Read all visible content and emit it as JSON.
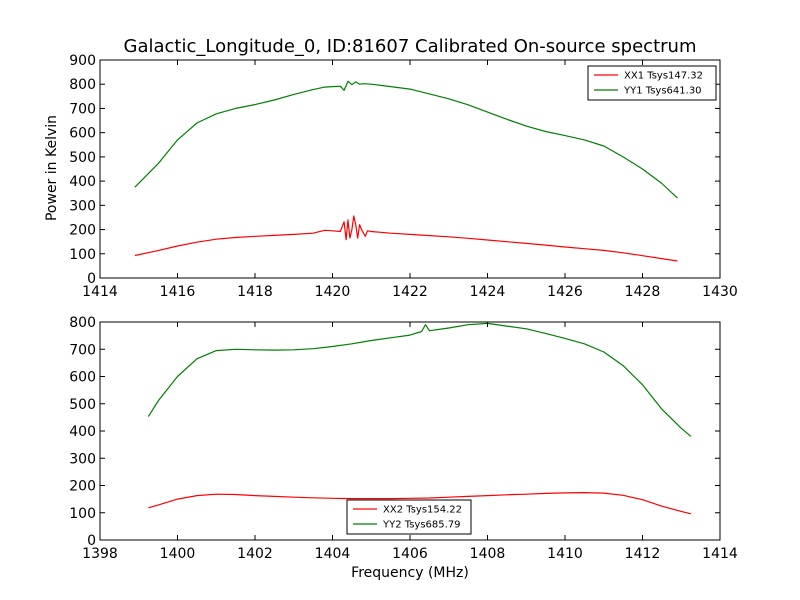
{
  "figure": {
    "title": "Galactic_Longitude_0, ID:81607 Calibrated On-source spectrum",
    "ylabel": "Power in Kelvin",
    "xlabel": "Frequency (MHz)"
  },
  "chart_data": [
    {
      "type": "line",
      "title": "Galactic_Longitude_0, ID:81607 Calibrated On-source spectrum",
      "xlabel": "",
      "ylabel": "Power in Kelvin",
      "xlim": [
        1414,
        1430
      ],
      "ylim": [
        0,
        900
      ],
      "xticks": [
        1414,
        1416,
        1418,
        1420,
        1422,
        1424,
        1426,
        1428,
        1430
      ],
      "yticks": [
        0,
        100,
        200,
        300,
        400,
        500,
        600,
        700,
        800,
        900
      ],
      "grid": false,
      "legend_position": "top-right",
      "series": [
        {
          "name": "XX1 Tsys147.32",
          "color": "#ff0000",
          "x": [
            1414.9,
            1415.5,
            1416,
            1416.5,
            1417,
            1417.5,
            1418,
            1418.5,
            1419,
            1419.5,
            1419.8,
            1420.0,
            1420.2,
            1420.3,
            1420.35,
            1420.4,
            1420.45,
            1420.5,
            1420.55,
            1420.6,
            1420.65,
            1420.7,
            1420.75,
            1420.8,
            1420.85,
            1420.9,
            1421,
            1421.5,
            1422,
            1422.5,
            1423,
            1423.5,
            1424,
            1424.5,
            1425,
            1425.5,
            1426,
            1426.5,
            1427,
            1427.5,
            1428,
            1428.5,
            1428.9
          ],
          "values": [
            93,
            113,
            132,
            148,
            160,
            167,
            172,
            176,
            180,
            185,
            197,
            195,
            192,
            232,
            158,
            240,
            165,
            200,
            256,
            220,
            165,
            220,
            200,
            185,
            172,
            195,
            192,
            185,
            180,
            175,
            170,
            164,
            157,
            150,
            143,
            136,
            128,
            121,
            114,
            104,
            92,
            80,
            70
          ]
        },
        {
          "name": "YY1 Tsys641.30",
          "color": "#008000",
          "x": [
            1414.9,
            1415.5,
            1416,
            1416.5,
            1417,
            1417.5,
            1418,
            1418.5,
            1419,
            1419.5,
            1419.8,
            1420.0,
            1420.2,
            1420.3,
            1420.4,
            1420.5,
            1420.6,
            1420.7,
            1420.8,
            1421,
            1421.5,
            1422,
            1422.5,
            1423,
            1423.5,
            1424,
            1424.5,
            1425,
            1425.5,
            1426,
            1426.5,
            1427,
            1427.5,
            1428,
            1428.5,
            1428.9
          ],
          "values": [
            375,
            472,
            570,
            640,
            678,
            700,
            716,
            735,
            758,
            778,
            788,
            790,
            792,
            775,
            812,
            798,
            810,
            800,
            802,
            800,
            790,
            780,
            760,
            740,
            715,
            685,
            655,
            627,
            605,
            588,
            570,
            545,
            500,
            450,
            390,
            330
          ]
        }
      ]
    },
    {
      "type": "line",
      "title": "",
      "xlabel": "Frequency (MHz)",
      "ylabel": "",
      "xlim": [
        1398,
        1414
      ],
      "ylim": [
        0,
        800
      ],
      "xticks": [
        1398,
        1400,
        1402,
        1404,
        1406,
        1408,
        1410,
        1412,
        1414
      ],
      "yticks": [
        0,
        100,
        200,
        300,
        400,
        500,
        600,
        700,
        800
      ],
      "grid": false,
      "legend_position": "bottom-center",
      "series": [
        {
          "name": "XX2 Tsys154.22",
          "color": "#ff0000",
          "x": [
            1399.25,
            1399.5,
            1400,
            1400.5,
            1401,
            1401.5,
            1402,
            1402.5,
            1403,
            1403.5,
            1404,
            1404.5,
            1405,
            1405.5,
            1406,
            1406.5,
            1407,
            1407.5,
            1408,
            1408.5,
            1409,
            1409.5,
            1410,
            1410.5,
            1411,
            1411.5,
            1412,
            1412.5,
            1413,
            1413.25
          ],
          "values": [
            118,
            128,
            150,
            163,
            168,
            167,
            163,
            160,
            157,
            155,
            153,
            152,
            152,
            152,
            153,
            154,
            157,
            160,
            163,
            166,
            168,
            171,
            173,
            174,
            172,
            164,
            148,
            124,
            105,
            96
          ]
        },
        {
          "name": "YY2 Tsys685.79",
          "color": "#008000",
          "x": [
            1399.25,
            1399.5,
            1400,
            1400.5,
            1401,
            1401.5,
            1402,
            1402.5,
            1403,
            1403.5,
            1404,
            1404.5,
            1405,
            1405.5,
            1406,
            1406.3,
            1406.4,
            1406.5,
            1407,
            1407.5,
            1408,
            1408.5,
            1409,
            1409.5,
            1410,
            1410.5,
            1411,
            1411.5,
            1412,
            1412.5,
            1413,
            1413.25
          ],
          "values": [
            453,
            510,
            600,
            665,
            695,
            700,
            698,
            697,
            698,
            702,
            710,
            720,
            732,
            742,
            752,
            765,
            790,
            768,
            778,
            790,
            795,
            785,
            775,
            758,
            740,
            720,
            690,
            640,
            570,
            480,
            410,
            380
          ]
        }
      ]
    }
  ]
}
